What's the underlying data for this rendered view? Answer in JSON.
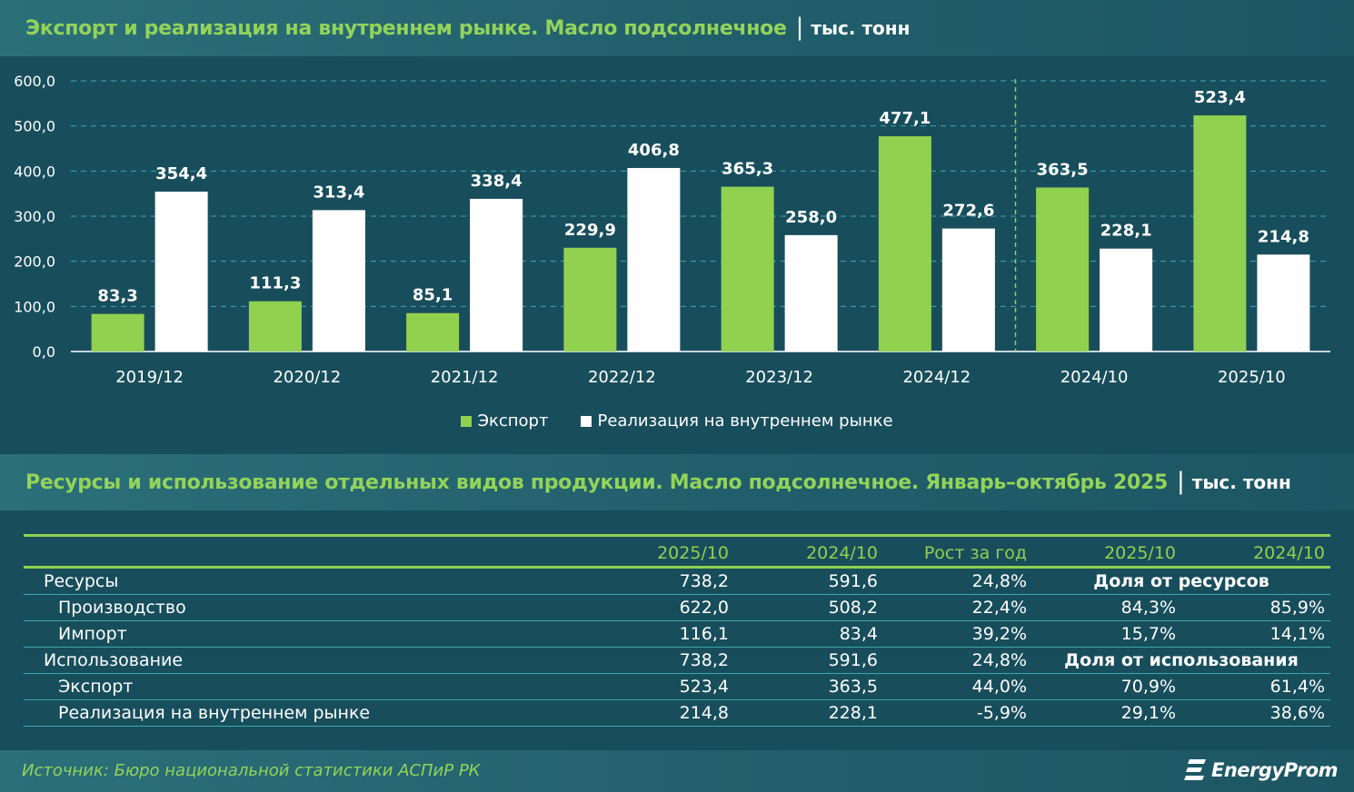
{
  "header": {
    "title": "Экспорт и реализация на внутреннем рынке. Масло подсолнечное",
    "separator": "|",
    "unit": "тыс. тонн"
  },
  "colors": {
    "export": "#92d050",
    "domestic": "#ffffff",
    "background": "#184e5c",
    "title_green": "#93d35a",
    "grid": "#3aa6ad"
  },
  "chart_data": {
    "type": "bar",
    "categories": [
      "2019/12",
      "2020/12",
      "2021/12",
      "2022/12",
      "2023/12",
      "2024/12",
      "2024/10",
      "2025/10"
    ],
    "series": [
      {
        "name": "Экспорт",
        "values": [
          83.3,
          111.3,
          85.1,
          229.9,
          365.3,
          477.1,
          363.5,
          523.4
        ],
        "labels": [
          "83,3",
          "111,3",
          "85,1",
          "229,9",
          "365,3",
          "477,1",
          "363,5",
          "523,4"
        ]
      },
      {
        "name": "Реализация на внутреннем рынке",
        "values": [
          354.4,
          313.4,
          338.4,
          406.8,
          258.0,
          272.6,
          228.1,
          214.8
        ],
        "labels": [
          "354,4",
          "313,4",
          "338,4",
          "406,8",
          "258,0",
          "272,6",
          "228,1",
          "214,8"
        ]
      }
    ],
    "y_ticks": [
      "0,0",
      "100,0",
      "200,0",
      "300,0",
      "400,0",
      "500,0",
      "600,0"
    ],
    "ylim": [
      0,
      600
    ],
    "grid": true,
    "divider_after_category": "2024/12",
    "legend_position": "bottom"
  },
  "legend": {
    "export": "Экспорт",
    "domestic": "Реализация на внутреннем рынке"
  },
  "table_header": {
    "title": "Ресурсы и использование отдельных видов продукции. Масло подсолнечное. Январь–октябрь 2025",
    "separator": "|",
    "unit": "тыс. тонн"
  },
  "table": {
    "columns": [
      "",
      "2025/10",
      "2024/10",
      "Рост за год",
      "2025/10",
      "2024/10"
    ],
    "rows": [
      {
        "label": "Ресурсы",
        "v2025": "738,2",
        "v2024": "591,6",
        "growth": "24,8%",
        "share_header": "Доля от ресурсов"
      },
      {
        "label": "Производство",
        "v2025": "622,0",
        "v2024": "508,2",
        "growth": "22,4%",
        "s2025": "84,3%",
        "s2024": "85,9%"
      },
      {
        "label": "Импорт",
        "v2025": "116,1",
        "v2024": "83,4",
        "growth": "39,2%",
        "s2025": "15,7%",
        "s2024": "14,1%"
      },
      {
        "label": "Использование",
        "v2025": "738,2",
        "v2024": "591,6",
        "growth": "24,8%",
        "share_header": "Доля от использования"
      },
      {
        "label": "Экспорт",
        "v2025": "523,4",
        "v2024": "363,5",
        "growth": "44,0%",
        "s2025": "70,9%",
        "s2024": "61,4%"
      },
      {
        "label": "Реализация на внутреннем рынке",
        "v2025": "214,8",
        "v2024": "228,1",
        "growth": "-5,9%",
        "s2025": "29,1%",
        "s2024": "38,6%"
      }
    ]
  },
  "footer": {
    "source": "Источник: Бюро национальной статистики АСПиР РК",
    "logo_text": "EnergyProm",
    "logo_icon": "energyprom-logo-icon"
  }
}
